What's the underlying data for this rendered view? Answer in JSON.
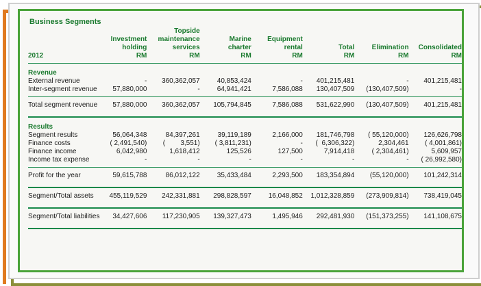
{
  "title": "Business Segments",
  "columns": [
    {
      "line1": "",
      "line2": "Investment",
      "line3": "holding",
      "unit": "RM"
    },
    {
      "line1": "Topside",
      "line2": "maintenance",
      "line3": "services",
      "unit": "RM"
    },
    {
      "line1": "",
      "line2": "Marine",
      "line3": "charter",
      "unit": "RM"
    },
    {
      "line1": "",
      "line2": "Equipment",
      "line3": "rental",
      "unit": "RM"
    },
    {
      "line1": "",
      "line2": "",
      "line3": "Total",
      "unit": "RM"
    },
    {
      "line1": "",
      "line2": "",
      "line3": "Elimination",
      "unit": "RM"
    },
    {
      "line1": "",
      "line2": "",
      "line3": "Consolidated",
      "unit": "RM"
    }
  ],
  "year": "2012",
  "revenue": {
    "heading": "Revenue",
    "rows": [
      {
        "label": "External revenue",
        "values": [
          "-",
          "360,362,057",
          "40,853,424",
          "-",
          "401,215,481",
          "-",
          "401,215,481"
        ]
      },
      {
        "label": "Inter-segment revenue",
        "values": [
          "57,880,000",
          "-",
          "64,941,421",
          "7,586,088",
          "130,407,509",
          "(130,407,509)",
          "-"
        ]
      }
    ],
    "total": {
      "label": "Total segment revenue",
      "values": [
        "57,880,000",
        "360,362,057",
        "105,794,845",
        "7,586,088",
        "531,622,990",
        "(130,407,509)",
        "401,215,481"
      ]
    }
  },
  "results": {
    "heading": "Results",
    "rows": [
      {
        "label": "Segment results",
        "values": [
          "56,064,348",
          "84,397,261",
          "39,119,189",
          "2,166,000",
          "181,746,798",
          "( 55,120,000)",
          "126,626,798"
        ]
      },
      {
        "label": "Finance costs",
        "values": [
          "( 2,491,540)",
          "(        3,551)",
          "( 3,811,231)",
          "-",
          "(  6,306,322)",
          "2,304,461",
          "( 4,001,861)"
        ]
      },
      {
        "label": "Finance income",
        "values": [
          "6,042,980",
          "1,618,412",
          "125,526",
          "127,500",
          "7,914,418",
          "( 2,304,461)",
          "5,609,957"
        ]
      },
      {
        "label": "Income tax expense",
        "values": [
          "-",
          "-",
          "-",
          "-",
          "-",
          "-",
          "( 26,992,580)"
        ]
      }
    ],
    "profit": {
      "label": "Profit for the year",
      "values": [
        "59,615,788",
        "86,012,122",
        "35,433,484",
        "2,293,500",
        "183,354,894",
        "(55,120,000)",
        "101,242,314"
      ]
    },
    "assets": {
      "label": "Segment/Total assets",
      "values": [
        "455,119,529",
        "242,331,881",
        "298,828,597",
        "16,048,852",
        "1,012,328,859",
        "(273,909,814)",
        "738,419,045"
      ]
    },
    "liabilities": {
      "label": "Segment/Total liabilities",
      "values": [
        "34,427,606",
        "117,230,905",
        "139,327,473",
        "1,495,946",
        "292,481,930",
        "(151,373,255)",
        "141,108,675"
      ]
    }
  }
}
